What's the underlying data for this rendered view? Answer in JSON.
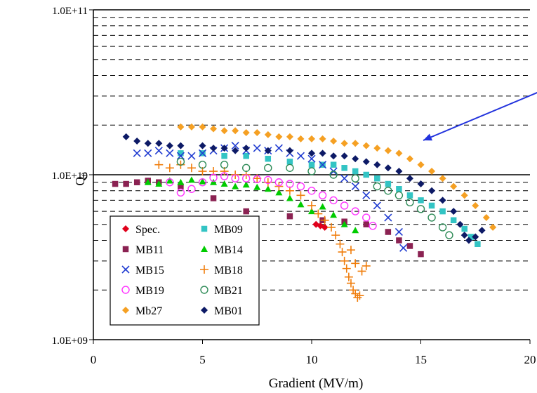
{
  "chart_data": {
    "type": "scatter",
    "xlabel": "Gradient (MV/m)",
    "ylabel": "Q₀",
    "xlim": [
      0,
      20
    ],
    "ylim": [
      1000000000.0,
      100000000000.0
    ],
    "yscale": "log",
    "x_ticks": [
      "0",
      "5",
      "10",
      "15",
      "20"
    ],
    "y_ticks": [
      "1.0E+09",
      "1.0E+10",
      "1.0E+11"
    ],
    "grid": "horizontal dashed minor, solid major",
    "legend": "lower-left, two columns",
    "series": [
      {
        "name": "Spec.",
        "marker": "diamond",
        "color": "#e0001b",
        "points": [
          [
            10.2,
            5000000000.0
          ],
          [
            10.4,
            4900000000.0
          ],
          [
            10.6,
            4800000000.0
          ]
        ]
      },
      {
        "name": "MB09",
        "marker": "square",
        "color": "#33c4c4",
        "points": [
          [
            4.0,
            13500000000.0
          ],
          [
            5.0,
            13500000000.0
          ],
          [
            6.0,
            13000000000.0
          ],
          [
            7.0,
            13000000000.0
          ],
          [
            8.0,
            12500000000.0
          ],
          [
            9.0,
            12000000000.0
          ],
          [
            10.0,
            11500000000.0
          ],
          [
            10.5,
            11500000000.0
          ],
          [
            11.0,
            11500000000.0
          ],
          [
            11.5,
            11000000000.0
          ],
          [
            12.0,
            10500000000.0
          ],
          [
            12.5,
            10000000000.0
          ],
          [
            13.0,
            9500000000.0
          ],
          [
            13.5,
            8800000000.0
          ],
          [
            14.0,
            8200000000.0
          ],
          [
            14.5,
            7500000000.0
          ],
          [
            15.0,
            7000000000.0
          ],
          [
            15.5,
            6500000000.0
          ],
          [
            16.0,
            6000000000.0
          ],
          [
            16.5,
            5300000000.0
          ],
          [
            17.0,
            4700000000.0
          ],
          [
            17.3,
            4200000000.0
          ],
          [
            17.6,
            3800000000.0
          ]
        ]
      },
      {
        "name": "MB11",
        "marker": "square",
        "color": "#8b2252",
        "points": [
          [
            1.0,
            8800000000.0
          ],
          [
            1.5,
            8800000000.0
          ],
          [
            2.0,
            9000000000.0
          ],
          [
            2.5,
            9200000000.0
          ],
          [
            3.0,
            9000000000.0
          ],
          [
            4.0,
            8500000000.0
          ],
          [
            5.5,
            7200000000.0
          ],
          [
            7.0,
            6000000000.0
          ],
          [
            9.0,
            5600000000.0
          ],
          [
            10.5,
            5300000000.0
          ],
          [
            11.5,
            5200000000.0
          ],
          [
            12.5,
            5000000000.0
          ],
          [
            13.5,
            4500000000.0
          ],
          [
            14.0,
            4000000000.0
          ],
          [
            14.5,
            3700000000.0
          ],
          [
            15.0,
            3300000000.0
          ]
        ]
      },
      {
        "name": "MB14",
        "marker": "triangle",
        "color": "#00cc00",
        "points": [
          [
            2.5,
            9000000000.0
          ],
          [
            3.0,
            8800000000.0
          ],
          [
            3.5,
            9200000000.0
          ],
          [
            4.0,
            9000000000.0
          ],
          [
            4.5,
            9300000000.0
          ],
          [
            5.0,
            9100000000.0
          ],
          [
            5.5,
            9000000000.0
          ],
          [
            6.0,
            8800000000.0
          ],
          [
            6.5,
            8500000000.0
          ],
          [
            7.0,
            8700000000.0
          ],
          [
            7.5,
            8400000000.0
          ],
          [
            8.0,
            8200000000.0
          ],
          [
            8.5,
            7800000000.0
          ],
          [
            9.0,
            7200000000.0
          ],
          [
            9.5,
            6600000000.0
          ],
          [
            10.0,
            6000000000.0
          ],
          [
            10.5,
            6400000000.0
          ],
          [
            11.0,
            5700000000.0
          ],
          [
            11.5,
            5000000000.0
          ],
          [
            12.0,
            4600000000.0
          ]
        ]
      },
      {
        "name": "MB15",
        "marker": "x",
        "color": "#1f3bd1",
        "points": [
          [
            2.0,
            13500000000.0
          ],
          [
            2.5,
            13500000000.0
          ],
          [
            3.0,
            14000000000.0
          ],
          [
            3.5,
            13500000000.0
          ],
          [
            4.0,
            13000000000.0
          ],
          [
            4.5,
            13000000000.0
          ],
          [
            5.0,
            13500000000.0
          ],
          [
            5.5,
            14000000000.0
          ],
          [
            6.0,
            14500000000.0
          ],
          [
            6.5,
            15000000000.0
          ],
          [
            7.0,
            14000000000.0
          ],
          [
            7.5,
            14500000000.0
          ],
          [
            8.0,
            14000000000.0
          ],
          [
            8.5,
            14500000000.0
          ],
          [
            9.0,
            13500000000.0
          ],
          [
            9.5,
            13000000000.0
          ],
          [
            10.0,
            12500000000.0
          ],
          [
            10.5,
            11500000000.0
          ],
          [
            11.0,
            10500000000.0
          ],
          [
            11.5,
            9500000000.0
          ],
          [
            12.0,
            8500000000.0
          ],
          [
            12.5,
            7500000000.0
          ],
          [
            13.0,
            6500000000.0
          ],
          [
            13.5,
            5500000000.0
          ],
          [
            14.0,
            4500000000.0
          ],
          [
            14.2,
            3600000000.0
          ]
        ]
      },
      {
        "name": "MB18",
        "marker": "plus",
        "color": "#f07d0b",
        "points": [
          [
            3.0,
            11500000000.0
          ],
          [
            3.5,
            11000000000.0
          ],
          [
            4.0,
            11500000000.0
          ],
          [
            4.5,
            11000000000.0
          ],
          [
            5.0,
            10500000000.0
          ],
          [
            5.5,
            10500000000.0
          ],
          [
            6.0,
            10500000000.0
          ],
          [
            6.5,
            10000000000.0
          ],
          [
            7.0,
            10000000000.0
          ],
          [
            7.5,
            9500000000.0
          ],
          [
            8.0,
            9000000000.0
          ],
          [
            8.5,
            8500000000.0
          ],
          [
            9.0,
            8000000000.0
          ],
          [
            9.5,
            7500000000.0
          ],
          [
            10.0,
            6500000000.0
          ],
          [
            10.3,
            5800000000.0
          ],
          [
            10.6,
            5300000000.0
          ],
          [
            10.9,
            4800000000.0
          ],
          [
            11.1,
            4300000000.0
          ],
          [
            11.3,
            3800000000.0
          ],
          [
            11.4,
            3400000000.0
          ],
          [
            11.5,
            3000000000.0
          ],
          [
            11.6,
            2700000000.0
          ],
          [
            11.7,
            2400000000.0
          ],
          [
            11.8,
            2200000000.0
          ],
          [
            11.9,
            2000000000.0
          ],
          [
            12.0,
            1900000000.0
          ],
          [
            12.1,
            1800000000.0
          ],
          [
            12.2,
            1850000000.0
          ],
          [
            12.3,
            2600000000.0
          ],
          [
            12.0,
            2900000000.0
          ],
          [
            12.5,
            2800000000.0
          ],
          [
            11.8,
            3500000000.0
          ]
        ]
      },
      {
        "name": "MB19",
        "marker": "circle-open",
        "color": "#ff33ff",
        "points": [
          [
            3.5,
            9000000000.0
          ],
          [
            4.0,
            7800000000.0
          ],
          [
            4.5,
            8200000000.0
          ],
          [
            5.0,
            9000000000.0
          ],
          [
            5.5,
            9600000000.0
          ],
          [
            6.0,
            9800000000.0
          ],
          [
            6.5,
            9500000000.0
          ],
          [
            7.0,
            9500000000.0
          ],
          [
            7.5,
            9400000000.0
          ],
          [
            8.0,
            9300000000.0
          ],
          [
            8.5,
            9000000000.0
          ],
          [
            9.0,
            8800000000.0
          ],
          [
            9.5,
            8500000000.0
          ],
          [
            10.0,
            8000000000.0
          ],
          [
            10.5,
            7500000000.0
          ],
          [
            11.0,
            7000000000.0
          ],
          [
            11.5,
            6500000000.0
          ],
          [
            12.0,
            6000000000.0
          ],
          [
            12.5,
            5500000000.0
          ],
          [
            12.8,
            4900000000.0
          ]
        ]
      },
      {
        "name": "MB21",
        "marker": "circle-open",
        "color": "#2e8b57",
        "points": [
          [
            4.0,
            12000000000.0
          ],
          [
            5.0,
            11500000000.0
          ],
          [
            6.0,
            11500000000.0
          ],
          [
            7.0,
            11000000000.0
          ],
          [
            8.0,
            11000000000.0
          ],
          [
            9.0,
            11000000000.0
          ],
          [
            10.0,
            10500000000.0
          ],
          [
            11.0,
            10000000000.0
          ],
          [
            12.0,
            9500000000.0
          ],
          [
            13.0,
            8500000000.0
          ],
          [
            13.5,
            8000000000.0
          ],
          [
            14.0,
            7500000000.0
          ],
          [
            14.5,
            6800000000.0
          ],
          [
            15.0,
            6200000000.0
          ],
          [
            15.5,
            5500000000.0
          ],
          [
            16.0,
            4800000000.0
          ],
          [
            16.3,
            4300000000.0
          ]
        ]
      },
      {
        "name": "Mb27",
        "marker": "diamond",
        "color": "#f5a023",
        "points": [
          [
            4.0,
            19500000000.0
          ],
          [
            4.5,
            19500000000.0
          ],
          [
            5.0,
            19500000000.0
          ],
          [
            5.5,
            19000000000.0
          ],
          [
            6.0,
            18500000000.0
          ],
          [
            6.5,
            18500000000.0
          ],
          [
            7.0,
            18000000000.0
          ],
          [
            7.5,
            18000000000.0
          ],
          [
            8.0,
            17500000000.0
          ],
          [
            8.5,
            17000000000.0
          ],
          [
            9.0,
            17000000000.0
          ],
          [
            9.5,
            16500000000.0
          ],
          [
            10.0,
            16500000000.0
          ],
          [
            10.5,
            16500000000.0
          ],
          [
            11.0,
            16000000000.0
          ],
          [
            11.5,
            15500000000.0
          ],
          [
            12.0,
            15500000000.0
          ],
          [
            12.5,
            15000000000.0
          ],
          [
            13.0,
            14500000000.0
          ],
          [
            13.5,
            14000000000.0
          ],
          [
            14.0,
            13500000000.0
          ],
          [
            14.5,
            12500000000.0
          ],
          [
            15.0,
            11500000000.0
          ],
          [
            15.5,
            10500000000.0
          ],
          [
            16.0,
            9500000000.0
          ],
          [
            16.5,
            8500000000.0
          ],
          [
            17.0,
            7500000000.0
          ],
          [
            17.5,
            6500000000.0
          ],
          [
            18.0,
            5500000000.0
          ],
          [
            18.3,
            4800000000.0
          ]
        ]
      },
      {
        "name": "MB01",
        "marker": "diamond",
        "color": "#0d1a66",
        "points": [
          [
            1.5,
            17000000000.0
          ],
          [
            2.0,
            16000000000.0
          ],
          [
            2.5,
            15500000000.0
          ],
          [
            3.0,
            15500000000.0
          ],
          [
            3.5,
            15000000000.0
          ],
          [
            4.0,
            15000000000.0
          ],
          [
            5.0,
            15000000000.0
          ],
          [
            5.5,
            14500000000.0
          ],
          [
            6.0,
            14500000000.0
          ],
          [
            6.5,
            14000000000.0
          ],
          [
            7.0,
            14500000000.0
          ],
          [
            8.0,
            14000000000.0
          ],
          [
            9.0,
            14000000000.0
          ],
          [
            10.0,
            13500000000.0
          ],
          [
            10.5,
            13500000000.0
          ],
          [
            11.0,
            13000000000.0
          ],
          [
            11.5,
            13000000000.0
          ],
          [
            12.0,
            12500000000.0
          ],
          [
            12.5,
            12000000000.0
          ],
          [
            13.0,
            11500000000.0
          ],
          [
            13.5,
            11000000000.0
          ],
          [
            14.0,
            10500000000.0
          ],
          [
            14.5,
            9500000000.0
          ],
          [
            15.0,
            8800000000.0
          ],
          [
            15.5,
            8000000000.0
          ],
          [
            16.0,
            7000000000.0
          ],
          [
            16.5,
            6000000000.0
          ],
          [
            16.8,
            5000000000.0
          ],
          [
            17.0,
            4300000000.0
          ],
          [
            17.2,
            4000000000.0
          ],
          [
            17.5,
            4200000000.0
          ],
          [
            17.8,
            4600000000.0
          ]
        ]
      }
    ]
  }
}
